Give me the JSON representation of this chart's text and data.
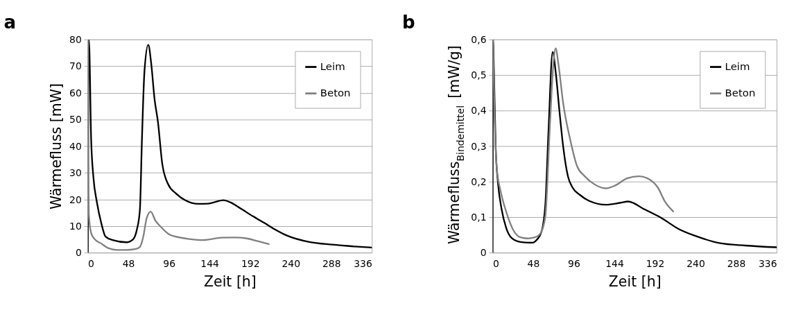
{
  "chart_data": [
    {
      "type": "line",
      "title": "a",
      "xlabel": "Zeit [h]",
      "ylabel": "Wärmefluss [mW]",
      "xlim": [
        0,
        336
      ],
      "xticks": [
        0,
        48,
        96,
        144,
        192,
        240,
        288,
        336
      ],
      "ylim": [
        0,
        80
      ],
      "yticks": [
        0,
        10,
        20,
        30,
        40,
        50,
        60,
        70,
        80
      ],
      "grid": "y",
      "legend": "top right",
      "marker": "none",
      "line_style": "solid",
      "series": [
        {
          "name": "Leim",
          "color": "#000000",
          "x": [
            0,
            1,
            1.3,
            4,
            6.7,
            10.7,
            16,
            21,
            29.5,
            45.5,
            53.5,
            58,
            61.6,
            64,
            67,
            71.5,
            75,
            79,
            83,
            88,
            95,
            104,
            115,
            131,
            142,
            160.5,
            168.5,
            182,
            195,
            209,
            222,
            235.6,
            262,
            289,
            316,
            336
          ],
          "values": [
            0,
            80,
            80,
            42,
            28,
            19,
            11,
            6,
            4.7,
            3.9,
            5,
            8.6,
            16,
            42,
            68,
            78,
            71,
            57.5,
            49,
            33.5,
            25.7,
            22.3,
            19.7,
            18.3,
            18.4,
            19.7,
            18.9,
            16.3,
            13.7,
            11.1,
            8.6,
            6.4,
            4,
            3,
            2.3,
            1.9
          ]
        },
        {
          "name": "Beton",
          "color": "#808080",
          "x": [
            0.3,
            0.8,
            1.3,
            4,
            8,
            16,
            24,
            35,
            45.5,
            56,
            61.6,
            65.6,
            69.6,
            74.4,
            80,
            85.7,
            96,
            104,
            120.5,
            136.5,
            158,
            174,
            187,
            201,
            214
          ],
          "values": [
            80,
            30,
            14,
            7.3,
            5.1,
            3.4,
            1.7,
            1.0,
            1.0,
            1.3,
            2.1,
            6,
            12.9,
            15.4,
            12,
            9.9,
            6.9,
            6,
            5.1,
            4.7,
            5.6,
            5.7,
            5.4,
            4.3,
            3.2
          ]
        }
      ]
    },
    {
      "type": "line",
      "title": "b",
      "xlabel": "Zeit [h]",
      "ylabel": "Wärmefluss$_{Bindemittel}$ [mW/g]",
      "xlim": [
        0,
        336
      ],
      "xticks": [
        0,
        48,
        96,
        144,
        192,
        240,
        288,
        336
      ],
      "ylim": [
        0,
        0.6
      ],
      "yticks": [
        0,
        {
          "value": 0.1,
          "label": "0,1"
        },
        {
          "value": 0.2,
          "label": "0,2"
        },
        {
          "value": 0.3,
          "label": "0,3"
        },
        {
          "value": 0.4,
          "label": "0,4"
        },
        {
          "value": 0.5,
          "label": "0,5"
        },
        {
          "value": 0.6,
          "label": "0,6"
        }
      ],
      "grid": "y",
      "legend": "top right",
      "marker": "none",
      "line_style": "solid",
      "series": [
        {
          "name": "Leim",
          "color": "#000000",
          "x": [
            0,
            0.5,
            1.7,
            3.6,
            6.4,
            10.6,
            16,
            23,
            33,
            47,
            52.6,
            58,
            62.4,
            66,
            71,
            75,
            79,
            83.4,
            89,
            94.6,
            103,
            114,
            134,
            150.6,
            160.5,
            178.7,
            198,
            220.6,
            240,
            268,
            299,
            336
          ],
          "values": [
            0,
            0.6,
            0.5,
            0.3,
            0.196,
            0.123,
            0.07,
            0.04,
            0.03,
            0.028,
            0.037,
            0.06,
            0.136,
            0.336,
            0.565,
            0.5,
            0.4,
            0.3,
            0.216,
            0.183,
            0.163,
            0.146,
            0.135,
            0.14,
            0.144,
            0.123,
            0.1,
            0.066,
            0.047,
            0.027,
            0.02,
            0.015
          ]
        },
        {
          "name": "Beton",
          "color": "#808080",
          "x": [
            0.5,
            2.2,
            5,
            9.2,
            16,
            24.6,
            33,
            41.4,
            50,
            57,
            62.4,
            68,
            72,
            74.5,
            78,
            83.4,
            92,
            100,
            108.6,
            120,
            134,
            145,
            159,
            173,
            185.6,
            195.5,
            204,
            213.7
          ],
          "values": [
            0.6,
            0.4,
            0.236,
            0.176,
            0.116,
            0.063,
            0.043,
            0.04,
            0.043,
            0.056,
            0.103,
            0.369,
            0.535,
            0.575,
            0.528,
            0.422,
            0.316,
            0.243,
            0.216,
            0.193,
            0.181,
            0.189,
            0.209,
            0.215,
            0.206,
            0.183,
            0.143,
            0.116
          ]
        }
      ]
    }
  ]
}
